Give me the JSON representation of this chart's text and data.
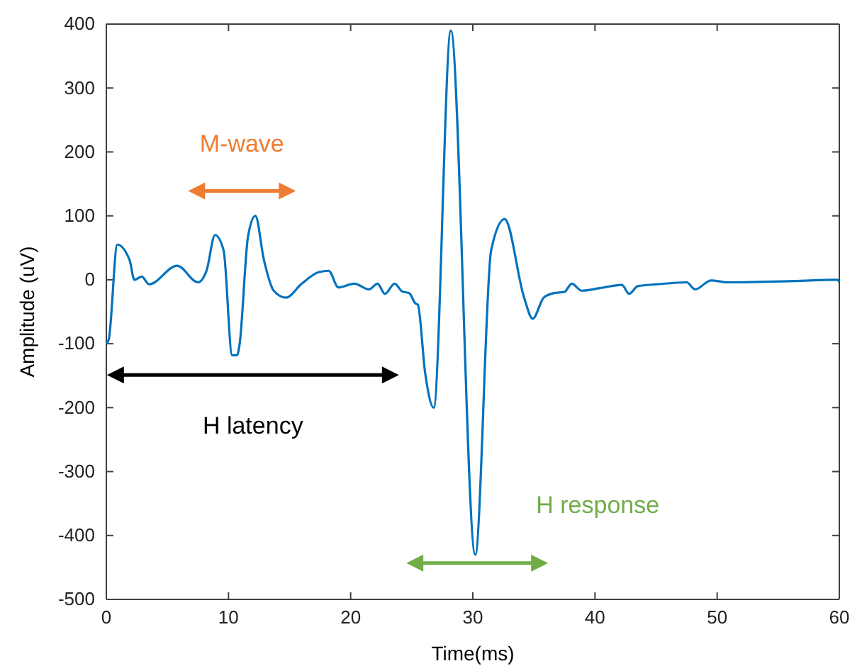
{
  "chart_data": {
    "type": "line",
    "xlabel": "Time(ms)",
    "ylabel": "Amplitude (uV)",
    "xlim": [
      0,
      60
    ],
    "xticks": [
      0,
      10,
      20,
      30,
      40,
      50,
      60
    ],
    "ylim": [
      -500,
      400
    ],
    "yticks": [
      -500,
      -400,
      -300,
      -200,
      -100,
      0,
      100,
      200,
      300,
      400
    ],
    "grid": false,
    "marker": "none",
    "line_style": "solid",
    "series": [
      {
        "color": "#0072bd",
        "x": [
          0,
          0.2,
          0.9,
          1.9,
          2.3,
          2.9,
          3.5,
          5.8,
          7.5,
          8.2,
          8.9,
          9.6,
          10.3,
          10.7,
          10.9,
          11.6,
          12.2,
          12.9,
          13.7,
          14.7,
          16.0,
          17.4,
          18.2,
          19.0,
          20.3,
          21.5,
          22.2,
          22.8,
          23.6,
          24.2,
          24.8,
          25.3,
          25.5,
          26.1,
          26.8,
          28.2,
          30.2,
          31.5,
          32.6,
          34.2,
          34.9,
          35.8,
          36.6,
          37.5,
          38.1,
          38.9,
          40.4,
          42.2,
          42.8,
          43.5,
          45.1,
          47.5,
          48.2,
          49.5,
          50.9,
          56.3,
          59.8,
          60
        ],
        "values": [
          -100,
          -93,
          55,
          31,
          0,
          5,
          -7,
          22,
          -4,
          14,
          70,
          46,
          -118,
          -118,
          -102,
          68,
          100,
          31,
          -17,
          -28,
          -6,
          12,
          14,
          -12,
          -6,
          -15,
          -6,
          -22,
          -6,
          -18,
          -21,
          -37,
          -39,
          -146,
          -200,
          390,
          -430,
          46,
          95,
          -28,
          -61,
          -28,
          -21,
          -19,
          -6,
          -17,
          -13,
          -8,
          -22,
          -10,
          -7,
          -4,
          -15,
          -1,
          -4,
          -2,
          0,
          -3
        ]
      }
    ],
    "annotations": [
      "M-wave",
      "H latency",
      "H response"
    ]
  }
}
